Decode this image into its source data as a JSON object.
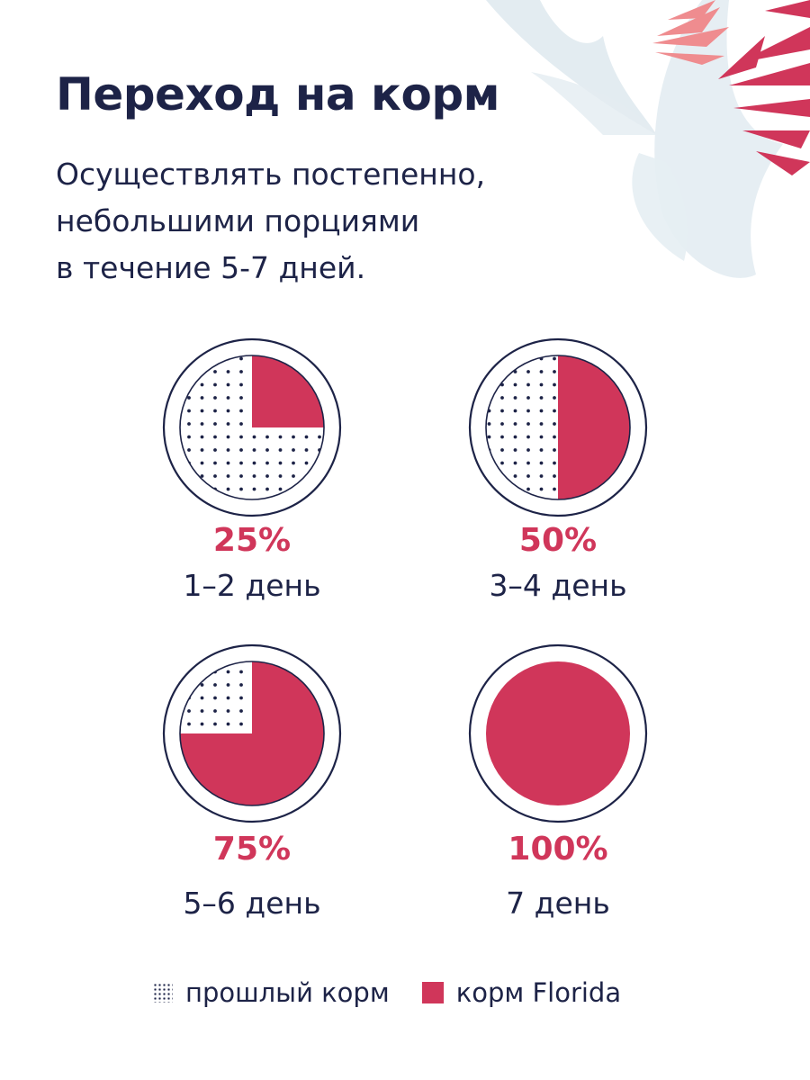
{
  "header": {
    "title": "Переход на корм",
    "subtitle_lines": [
      "Осуществлять постепенно,",
      "небольшими порциями",
      "в течение 5-7 дней."
    ]
  },
  "colors": {
    "accent": "#d0365a",
    "navy": "#1d2347",
    "leaf_light": "#e3ecf1",
    "leaf_pink": "#ef8c8f"
  },
  "chart_data": {
    "type": "pie",
    "unit": "%",
    "series_names": [
      "прошлый корм",
      "корм Florida"
    ],
    "panels": [
      {
        "percent_label": "25%",
        "days_label": "1–2 день",
        "florida_share": 25,
        "previous_share": 75
      },
      {
        "percent_label": "50%",
        "days_label": "3–4 день",
        "florida_share": 50,
        "previous_share": 50
      },
      {
        "percent_label": "75%",
        "days_label": "5–6 день",
        "florida_share": 75,
        "previous_share": 25
      },
      {
        "percent_label": "100%",
        "days_label": "7 день",
        "florida_share": 100,
        "previous_share": 0
      }
    ]
  },
  "legend": {
    "previous_label": "прошлый корм",
    "florida_label": "корм Florida"
  }
}
